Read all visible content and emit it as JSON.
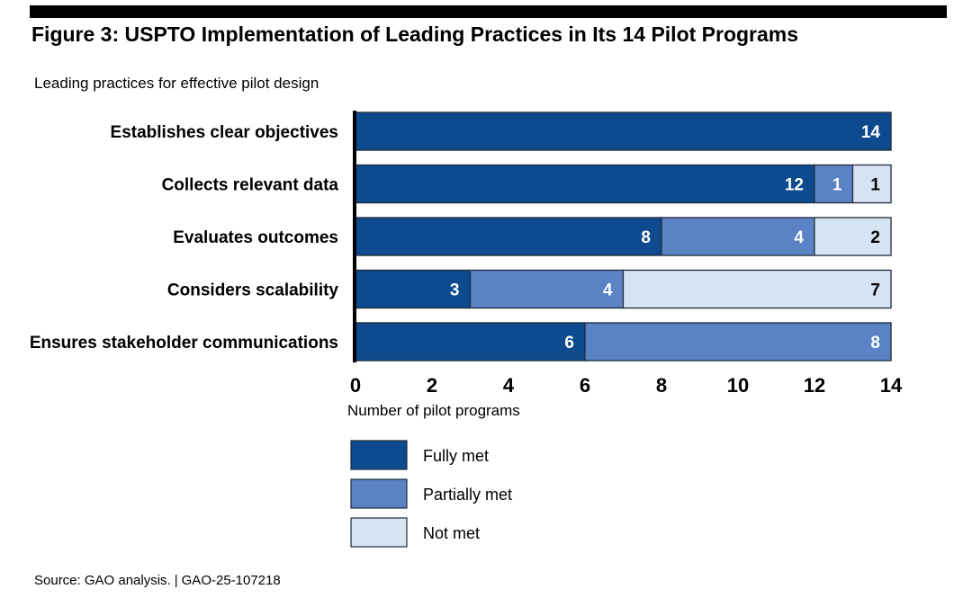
{
  "header": {
    "title": "Figure 3: USPTO Implementation of Leading Practices in Its 14 Pilot Programs",
    "subtitle": "Leading practices for effective pilot design"
  },
  "footer": {
    "source": "Source: GAO analysis.",
    "separator": "|",
    "report_id": "GAO-25-107218"
  },
  "colors": {
    "fully_met": "#0d4b8e",
    "partially_met": "#5b82c4",
    "not_met": "#d6e3f3",
    "bar_border": "#1f2a3a"
  },
  "chart_data": {
    "type": "bar",
    "orientation": "horizontal",
    "stacked": true,
    "categories": [
      "Establishes clear objectives",
      "Collects relevant data",
      "Evaluates outcomes",
      "Considers scalability",
      "Ensures stakeholder communications"
    ],
    "series": [
      {
        "name": "Fully met",
        "values": [
          14,
          12,
          8,
          3,
          6
        ]
      },
      {
        "name": "Partially met",
        "values": [
          0,
          1,
          4,
          4,
          8
        ]
      },
      {
        "name": "Not met",
        "values": [
          0,
          1,
          2,
          7,
          0
        ]
      }
    ],
    "xlabel": "Number of pilot programs",
    "ylabel": "",
    "xlim": [
      0,
      14
    ],
    "xticks": [
      0,
      2,
      4,
      6,
      8,
      10,
      12,
      14
    ],
    "data_labels": true,
    "grid": false,
    "legend_position": "bottom-left"
  }
}
